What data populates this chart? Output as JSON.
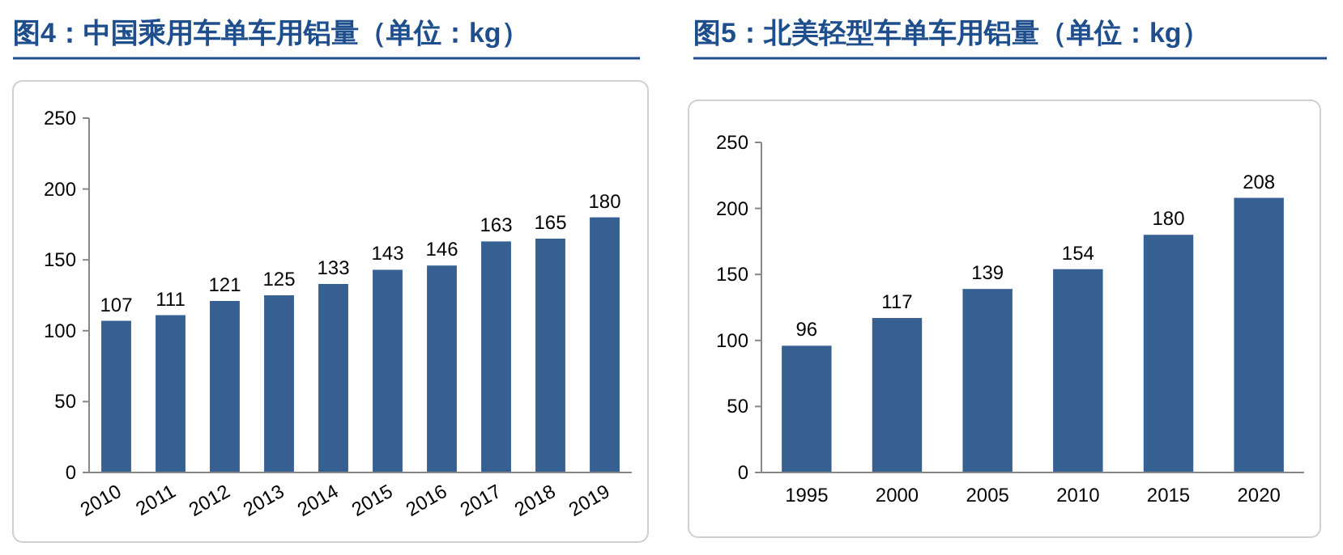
{
  "chart_data": [
    {
      "type": "bar",
      "title": "图4：中国乘用车单车用铝量（单位：kg）",
      "categories": [
        "2010",
        "2011",
        "2012",
        "2013",
        "2014",
        "2015",
        "2016",
        "2017",
        "2018",
        "2019"
      ],
      "values": [
        107,
        111,
        121,
        125,
        133,
        143,
        146,
        163,
        165,
        180
      ],
      "color": "#376092",
      "ylim": [
        0,
        250
      ],
      "yticks": [
        0,
        50,
        100,
        150,
        200,
        250
      ],
      "data_labels": true,
      "grid": false
    },
    {
      "type": "bar",
      "title": "图5：北美轻型车单车用铝量（单位：kg）",
      "categories": [
        "1995",
        "2000",
        "2005",
        "2010",
        "2015",
        "2020"
      ],
      "values": [
        96,
        117,
        139,
        154,
        180,
        208
      ],
      "color": "#376092",
      "ylim": [
        0,
        250
      ],
      "yticks": [
        0,
        50,
        100,
        150,
        200,
        250
      ],
      "data_labels": true,
      "grid": false
    }
  ]
}
